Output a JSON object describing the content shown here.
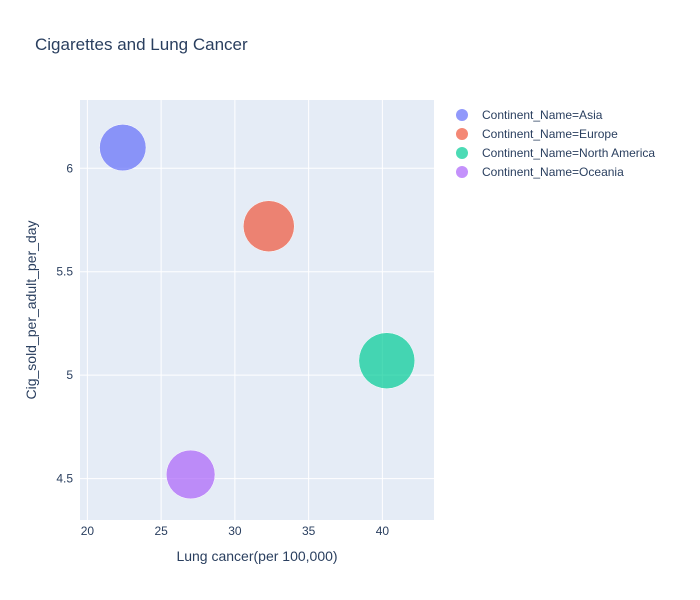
{
  "chart_data": {
    "type": "scatter",
    "title": "Cigarettes and Lung Cancer",
    "xlabel": "Lung cancer(per 100,000)",
    "ylabel": "Cig_sold_per_adult_per_day",
    "xlim": [
      19.5,
      43.5
    ],
    "ylim": [
      4.3,
      6.33
    ],
    "x_ticks": [
      20,
      25,
      30,
      35,
      40
    ],
    "y_ticks": [
      4.5,
      5,
      5.5,
      6
    ],
    "y_tick_labels": [
      "4.5",
      "5",
      "5.5",
      "6"
    ],
    "grid": true,
    "legend_position": "right",
    "series": [
      {
        "name": "Continent_Name=Asia",
        "color": "#636efa",
        "points": [
          {
            "x": 22.4,
            "y": 6.1,
            "size": 0.69
          }
        ]
      },
      {
        "name": "Continent_Name=Europe",
        "color": "#ef553b",
        "points": [
          {
            "x": 32.3,
            "y": 5.72,
            "size": 0.83
          }
        ]
      },
      {
        "name": "Continent_Name=North America",
        "color": "#00cc96",
        "points": [
          {
            "x": 40.3,
            "y": 5.07,
            "size": 1.0
          }
        ]
      },
      {
        "name": "Continent_Name=Oceania",
        "color": "#ab63fa",
        "points": [
          {
            "x": 27.0,
            "y": 4.52,
            "size": 0.76
          }
        ]
      }
    ]
  }
}
